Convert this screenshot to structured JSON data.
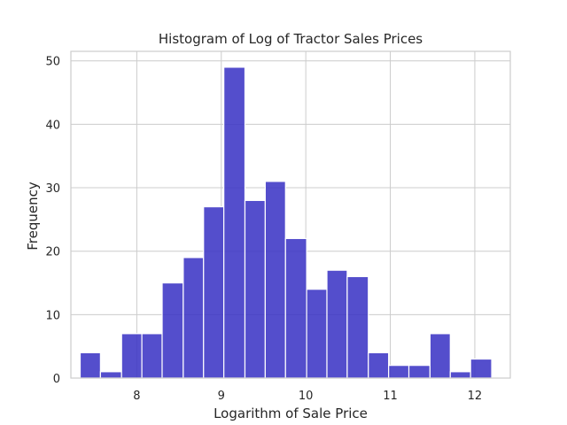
{
  "chart_data": {
    "type": "bar",
    "title": "Histogram of Log of Tractor Sales Prices",
    "xlabel": "Logarithm of Sale Price",
    "ylabel": "Frequency",
    "bin_edges": [
      7.33,
      7.57,
      7.82,
      8.06,
      8.3,
      8.55,
      8.79,
      9.03,
      9.28,
      9.52,
      9.76,
      10.01,
      10.25,
      10.49,
      10.74,
      10.98,
      11.22,
      11.47,
      11.71,
      11.95,
      12.2
    ],
    "values": [
      4,
      1,
      7,
      7,
      15,
      19,
      27,
      49,
      28,
      31,
      22,
      14,
      17,
      16,
      4,
      2,
      2,
      7,
      1,
      3
    ],
    "xlim": [
      7.22,
      12.42
    ],
    "ylim": [
      0,
      51.5
    ],
    "xticks": [
      8,
      9,
      10,
      11,
      12
    ],
    "yticks": [
      0,
      10,
      20,
      30,
      40,
      50
    ],
    "grid": true,
    "bar_color": "#3b34c4",
    "bar_opacity": 0.87
  }
}
